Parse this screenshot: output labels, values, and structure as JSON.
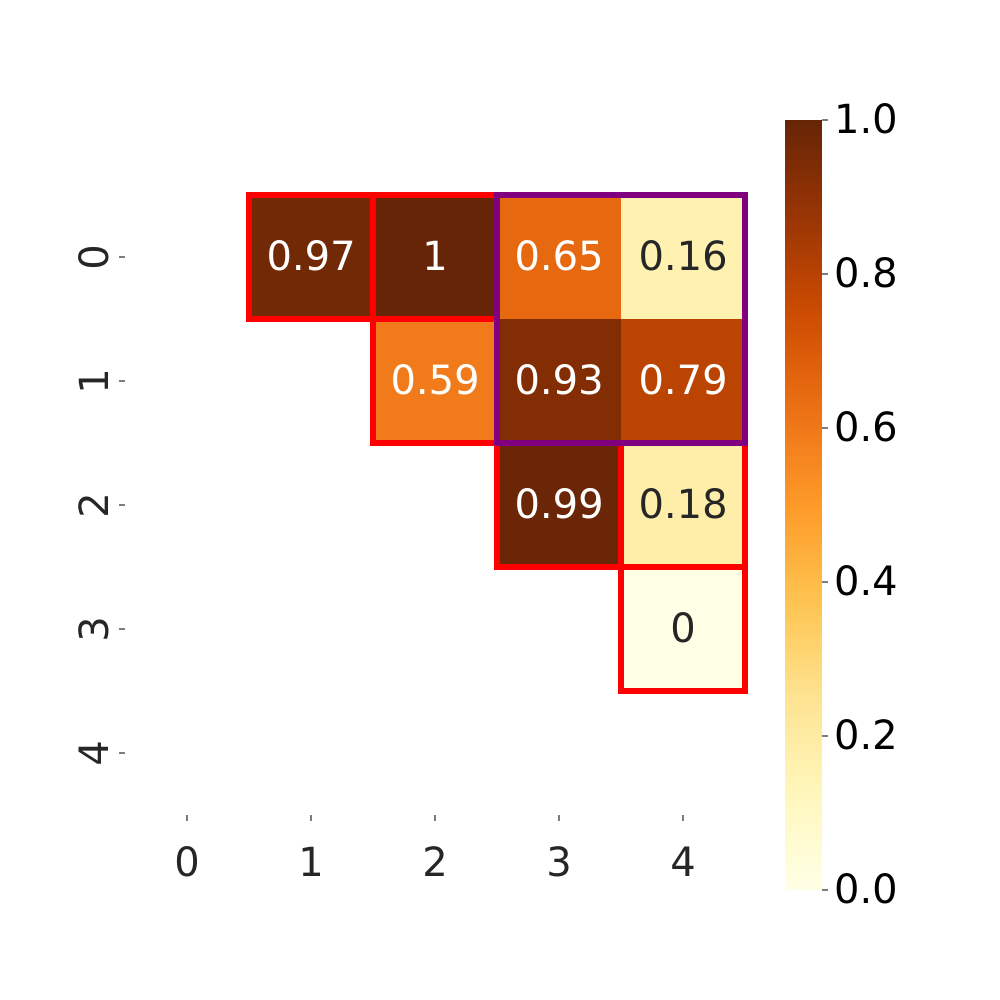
{
  "chart_data": {
    "type": "heatmap",
    "title": "",
    "xlabel": "",
    "ylabel": "",
    "x_tick_labels": [
      "0",
      "1",
      "2",
      "3",
      "4"
    ],
    "y_tick_labels": [
      "0",
      "1",
      "2",
      "3",
      "4"
    ],
    "cells": [
      {
        "row": 0,
        "col": 1,
        "value": 0.97,
        "label": "0.97"
      },
      {
        "row": 0,
        "col": 2,
        "value": 1.0,
        "label": "1"
      },
      {
        "row": 0,
        "col": 3,
        "value": 0.65,
        "label": "0.65"
      },
      {
        "row": 0,
        "col": 4,
        "value": 0.16,
        "label": "0.16"
      },
      {
        "row": 1,
        "col": 2,
        "value": 0.59,
        "label": "0.59"
      },
      {
        "row": 1,
        "col": 3,
        "value": 0.93,
        "label": "0.93"
      },
      {
        "row": 1,
        "col": 4,
        "value": 0.79,
        "label": "0.79"
      },
      {
        "row": 2,
        "col": 3,
        "value": 0.99,
        "label": "0.99"
      },
      {
        "row": 2,
        "col": 4,
        "value": 0.18,
        "label": "0.18"
      },
      {
        "row": 3,
        "col": 4,
        "value": 0.0,
        "label": "0"
      }
    ],
    "highlight_boxes": [
      {
        "rows": [
          0,
          0
        ],
        "cols": [
          1,
          1
        ],
        "color": "#ff0000"
      },
      {
        "rows": [
          0,
          0
        ],
        "cols": [
          2,
          2
        ],
        "color": "#ff0000"
      },
      {
        "rows": [
          1,
          1
        ],
        "cols": [
          2,
          2
        ],
        "color": "#ff0000"
      },
      {
        "rows": [
          2,
          2
        ],
        "cols": [
          3,
          3
        ],
        "color": "#ff0000"
      },
      {
        "rows": [
          2,
          2
        ],
        "cols": [
          4,
          4
        ],
        "color": "#ff0000"
      },
      {
        "rows": [
          3,
          3
        ],
        "cols": [
          4,
          4
        ],
        "color": "#ff0000"
      },
      {
        "rows": [
          0,
          1
        ],
        "cols": [
          3,
          4
        ],
        "color": "#800080"
      }
    ],
    "colormap": "YlOrBr",
    "colorbar": {
      "range": [
        0.0,
        1.0
      ],
      "ticks": [
        "0.0",
        "0.2",
        "0.4",
        "0.6",
        "0.8",
        "1.0"
      ]
    },
    "grid": false
  }
}
